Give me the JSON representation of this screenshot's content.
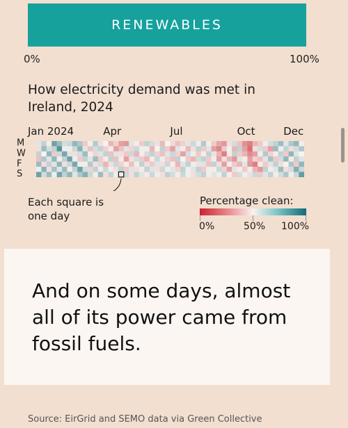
{
  "banner": {
    "label": "RENEWABLES",
    "scale_min": "0%",
    "scale_max": "100%",
    "color": "#16a19d"
  },
  "chart_data": {
    "type": "heatmap",
    "title": "How electricity demand was met in Ireland, 2024",
    "x_tick_labels": [
      "Jan 2024",
      "Apr",
      "Jul",
      "Oct",
      "Dec"
    ],
    "y_labels": [
      "M",
      "",
      "W",
      "",
      "F",
      "",
      "S"
    ],
    "annotation": "Each square is one day",
    "legend": {
      "title": "Percentage clean:",
      "labels": [
        "0%",
        "50%",
        "100%"
      ],
      "colors": [
        "#c8242f",
        "#f7f3f0",
        "#126b78"
      ]
    },
    "value_unit": "percent clean",
    "weeks": 52,
    "days_per_week": 7,
    "weekly_values": [
      [
        55,
        62,
        48,
        80,
        70,
        58,
        60,
        72,
        66,
        40,
        52,
        65,
        45,
        50,
        35,
        42,
        30,
        28,
        55,
        48,
        40,
        62,
        58,
        45,
        36,
        50,
        44,
        38,
        42,
        55,
        60,
        52,
        65,
        48,
        40,
        32,
        28,
        45,
        58,
        38,
        26,
        22,
        35,
        40,
        48,
        58,
        62,
        70,
        55,
        66,
        72,
        48
      ],
      [
        45,
        70,
        58,
        62,
        85,
        52,
        48,
        60,
        74,
        55,
        38,
        58,
        62,
        42,
        48,
        30,
        38,
        55,
        42,
        60,
        52,
        48,
        35,
        50,
        62,
        40,
        30,
        55,
        48,
        36,
        45,
        62,
        40,
        55,
        30,
        24,
        40,
        52,
        35,
        62,
        30,
        18,
        45,
        58,
        40,
        30,
        70,
        52,
        62,
        45,
        58,
        66
      ],
      [
        62,
        50,
        72,
        40,
        60,
        78,
        55,
        45,
        58,
        70,
        48,
        42,
        55,
        62,
        38,
        55,
        45,
        40,
        60,
        35,
        48,
        58,
        62,
        42,
        38,
        55,
        60,
        42,
        30,
        58,
        52,
        40,
        48,
        62,
        45,
        35,
        22,
        48,
        62,
        40,
        35,
        25,
        30,
        52,
        65,
        42,
        48,
        62,
        40,
        72,
        55,
        50
      ],
      [
        38,
        66,
        55,
        72,
        48,
        62,
        80,
        52,
        40,
        62,
        55,
        70,
        40,
        48,
        62,
        38,
        52,
        30,
        45,
        58,
        40,
        35,
        48,
        60,
        52,
        42,
        38,
        62,
        50,
        40,
        35,
        58,
        62,
        40,
        52,
        30,
        45,
        35,
        28,
        55,
        48,
        30,
        42,
        38,
        55,
        68,
        40,
        58,
        72,
        48,
        62,
        55
      ],
      [
        70,
        45,
        62,
        55,
        72,
        45,
        60,
        78,
        52,
        48,
        65,
        45,
        58,
        35,
        45,
        60,
        42,
        48,
        38,
        52,
        62,
        45,
        40,
        55,
        45,
        60,
        48,
        35,
        55,
        62,
        48,
        45,
        55,
        38,
        62,
        45,
        30,
        52,
        40,
        35,
        55,
        28,
        22,
        48,
        40,
        55,
        62,
        45,
        50,
        66,
        40,
        72
      ],
      [
        52,
        74,
        45,
        68,
        55,
        70,
        48,
        62,
        80,
        58,
        42,
        62,
        48,
        60,
        52,
        45,
        62,
        40,
        55,
        45,
        48,
        62,
        55,
        45,
        60,
        48,
        55,
        42,
        62,
        48,
        55,
        62,
        40,
        52,
        48,
        60,
        42,
        30,
        55,
        48,
        40,
        52,
        35,
        28,
        62,
        48,
        55,
        70,
        45,
        58,
        75,
        60
      ],
      [
        80,
        58,
        70,
        52,
        78,
        62,
        72,
        55,
        66,
        74,
        60,
        52,
        70,
        45,
        62,
        52,
        48,
        60,
        45,
        62,
        55,
        48,
        60,
        52,
        45,
        62,
        58,
        48,
        60,
        52,
        45,
        58,
        62,
        48,
        55,
        52,
        62,
        48,
        40,
        58,
        52,
        45,
        60,
        40,
        55,
        62,
        48,
        58,
        66,
        52,
        60,
        82
      ]
    ]
  },
  "callout": {
    "text": "And on some days, almost all of its power came from fossil fuels."
  },
  "source": "Source: EirGrid and SEMO data via Green Collective"
}
